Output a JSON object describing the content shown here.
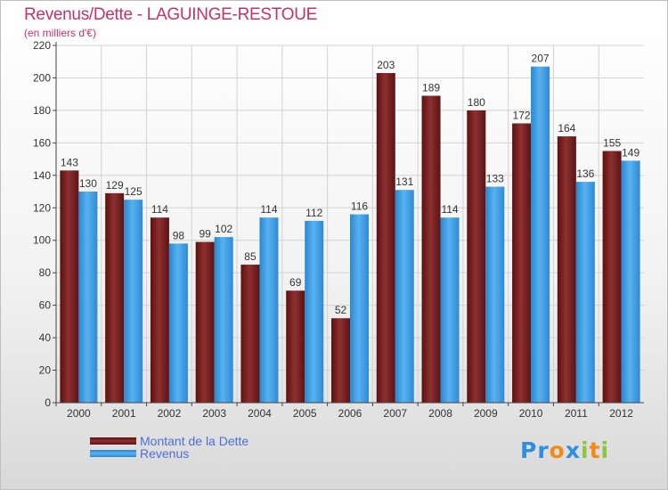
{
  "title": "Revenus/Dette - LAGUINGE-RESTOUE",
  "subtitle": "(en milliers d'€)",
  "logo": {
    "text": "Proxiti"
  },
  "colors": {
    "dette": "#7a2020",
    "revenus": "#3d9fe6",
    "title": "#c0336d",
    "legend_text": "#4a6fd8"
  },
  "chart_data": {
    "type": "bar",
    "categories": [
      "2000",
      "2001",
      "2002",
      "2003",
      "2004",
      "2005",
      "2006",
      "2007",
      "2008",
      "2009",
      "2010",
      "2011",
      "2012"
    ],
    "series": [
      {
        "name": "Montant de la Dette",
        "values": [
          143,
          129,
          114,
          99,
          85,
          69,
          52,
          203,
          189,
          180,
          172,
          164,
          155
        ]
      },
      {
        "name": "Revenus",
        "values": [
          130,
          125,
          98,
          102,
          114,
          112,
          116,
          131,
          114,
          133,
          207,
          136,
          149
        ]
      }
    ],
    "ylim": [
      0,
      220
    ],
    "yticks": [
      0,
      20,
      40,
      60,
      80,
      100,
      120,
      140,
      160,
      180,
      200,
      220
    ],
    "grid": true,
    "legend_position": "bottom-left"
  }
}
